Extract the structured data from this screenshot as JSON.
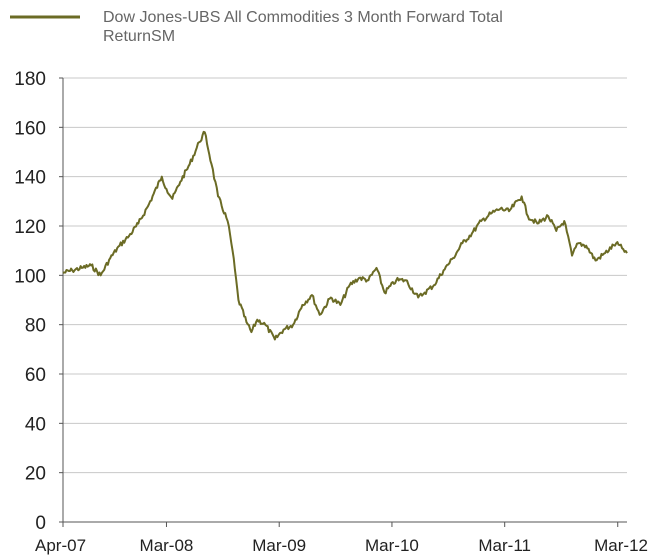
{
  "chart_data": {
    "type": "line",
    "title": "",
    "xlabel": "",
    "ylabel": "",
    "ylim": [
      0,
      180
    ],
    "yticks": [
      0,
      20,
      40,
      60,
      80,
      100,
      120,
      140,
      160,
      180
    ],
    "xlim": [
      "2007-04-01",
      "2012-03-31"
    ],
    "xtick_labels": [
      "Apr-07",
      "Mar-08",
      "Mar-09",
      "Mar-10",
      "Mar-11",
      "Mar-12"
    ],
    "xtick_dates": [
      "2007-04-01",
      "2008-03-01",
      "2009-03-01",
      "2010-03-01",
      "2011-03-01",
      "2012-03-01"
    ],
    "grid": "horizontal",
    "legend_position": "top-left",
    "colors": {
      "series": "#6b6b25",
      "grid": "#c8c8c8",
      "axis": "#555555"
    },
    "series": [
      {
        "name": "Dow Jones-UBS All Commodities 3 Month Forward Total ReturnSM",
        "points": [
          [
            "2007-04-01",
            101
          ],
          [
            "2007-05-01",
            102
          ],
          [
            "2007-06-01",
            103
          ],
          [
            "2007-07-01",
            104
          ],
          [
            "2007-08-01",
            100
          ],
          [
            "2007-09-01",
            107
          ],
          [
            "2007-10-01",
            112
          ],
          [
            "2007-11-01",
            116
          ],
          [
            "2007-12-01",
            121
          ],
          [
            "2008-01-01",
            128
          ],
          [
            "2008-02-15",
            140
          ],
          [
            "2008-03-01",
            135
          ],
          [
            "2008-03-20",
            131
          ],
          [
            "2008-04-15",
            138
          ],
          [
            "2008-05-15",
            145
          ],
          [
            "2008-06-15",
            154
          ],
          [
            "2008-07-03",
            158
          ],
          [
            "2008-07-25",
            145
          ],
          [
            "2008-08-15",
            132
          ],
          [
            "2008-09-15",
            122
          ],
          [
            "2008-10-01",
            110
          ],
          [
            "2008-10-20",
            90
          ],
          [
            "2008-11-15",
            81
          ],
          [
            "2008-12-01",
            77
          ],
          [
            "2008-12-20",
            82
          ],
          [
            "2009-01-15",
            80
          ],
          [
            "2009-02-15",
            74
          ],
          [
            "2009-03-15",
            78
          ],
          [
            "2009-04-15",
            80
          ],
          [
            "2009-05-15",
            88
          ],
          [
            "2009-06-15",
            92
          ],
          [
            "2009-07-10",
            84
          ],
          [
            "2009-08-15",
            91
          ],
          [
            "2009-09-15",
            88
          ],
          [
            "2009-10-15",
            96
          ],
          [
            "2009-11-15",
            99
          ],
          [
            "2009-12-15",
            98
          ],
          [
            "2010-01-10",
            103
          ],
          [
            "2010-02-05",
            93
          ],
          [
            "2010-03-15",
            98
          ],
          [
            "2010-04-15",
            98
          ],
          [
            "2010-05-25",
            91
          ],
          [
            "2010-06-15",
            93
          ],
          [
            "2010-07-15",
            96
          ],
          [
            "2010-08-15",
            102
          ],
          [
            "2010-09-15",
            107
          ],
          [
            "2010-10-15",
            113
          ],
          [
            "2010-11-15",
            117
          ],
          [
            "2010-12-15",
            122
          ],
          [
            "2011-01-15",
            125
          ],
          [
            "2011-02-15",
            127
          ],
          [
            "2011-03-15",
            126
          ],
          [
            "2011-04-25",
            132
          ],
          [
            "2011-05-15",
            124
          ],
          [
            "2011-06-15",
            121
          ],
          [
            "2011-07-20",
            124
          ],
          [
            "2011-08-15",
            118
          ],
          [
            "2011-09-10",
            122
          ],
          [
            "2011-10-05",
            108
          ],
          [
            "2011-10-25",
            113
          ],
          [
            "2011-11-20",
            112
          ],
          [
            "2011-12-20",
            106
          ],
          [
            "2012-01-20",
            109
          ],
          [
            "2012-02-25",
            113
          ],
          [
            "2012-03-15",
            111
          ],
          [
            "2012-03-31",
            109
          ]
        ]
      }
    ]
  }
}
